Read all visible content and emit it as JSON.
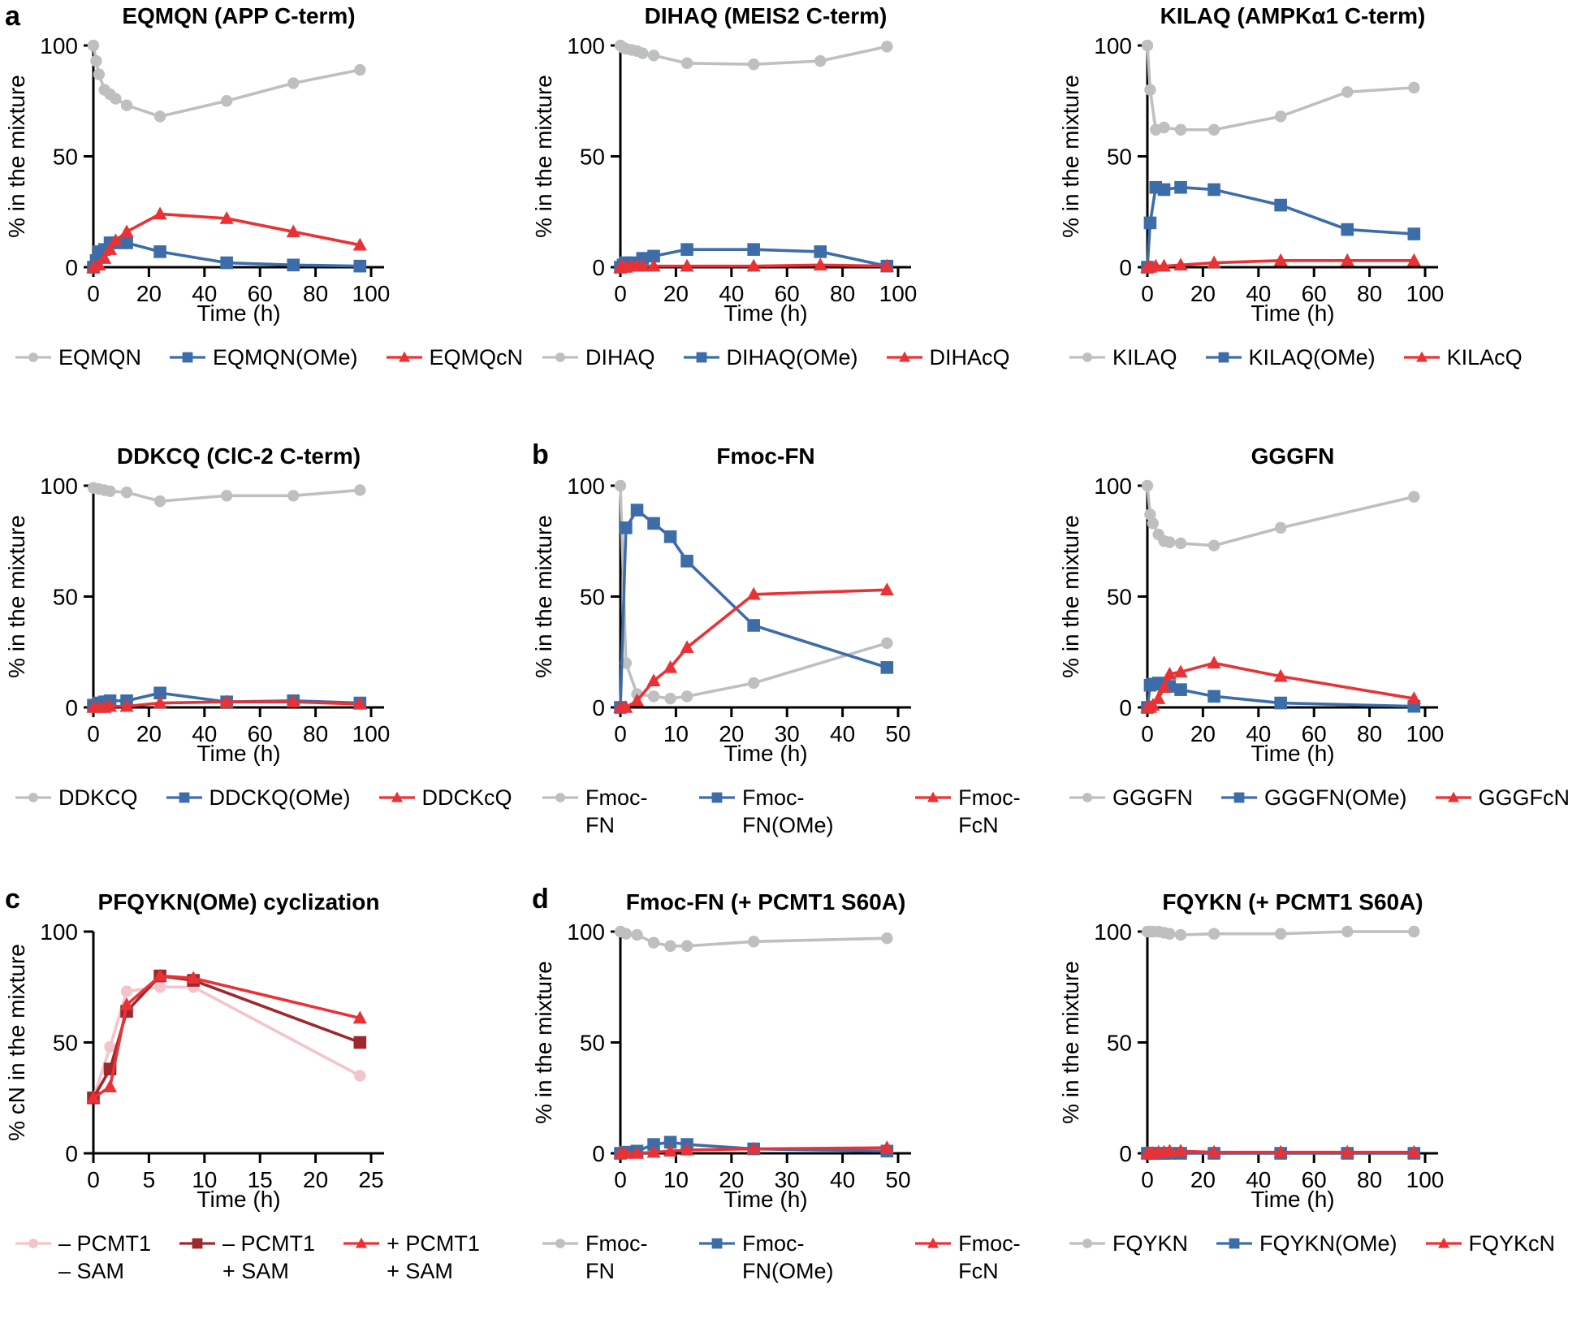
{
  "figure": {
    "background": "#ffffff",
    "axis_color": "#000000",
    "series_colors": {
      "gray": "#bdbfc1",
      "blue": "#3d6da8",
      "red": "#e93235",
      "pink": "#f3c4ca",
      "dark_red": "#9d282d"
    }
  },
  "chart_data": [
    {
      "panel_letter": "a",
      "type": "line",
      "title": "EQMQN (APP C-term)",
      "xlabel": "Time (h)",
      "ylabel": "% in the mixture",
      "xticks": [
        0,
        20,
        40,
        60,
        80,
        100
      ],
      "yticks": [
        0,
        50,
        100
      ],
      "xlim": [
        0,
        104
      ],
      "ylim": [
        0,
        100
      ],
      "grid": false,
      "legend_position": "bottom",
      "series": [
        {
          "name": "EQMQN",
          "legend_label": "EQMQN",
          "marker": "circle",
          "color": "#bdbfc1",
          "x": [
            0,
            1,
            2,
            4,
            6,
            8,
            12,
            24,
            48,
            72,
            96
          ],
          "y": [
            100,
            93,
            87,
            80,
            78,
            76,
            73,
            68,
            75,
            83,
            89
          ]
        },
        {
          "name": "EQMQN(OMe)",
          "legend_label": "EQMQN(OMe)",
          "marker": "square",
          "color": "#3d6da8",
          "x": [
            0,
            1,
            2,
            4,
            6,
            8,
            12,
            24,
            48,
            72,
            96
          ],
          "y": [
            0,
            3,
            7,
            8,
            11,
            11,
            11,
            7,
            2,
            1,
            0.5
          ]
        },
        {
          "name": "EQMQcN",
          "legend_label": "EQMQcN",
          "marker": "triangle",
          "color": "#e93235",
          "x": [
            0,
            2,
            4,
            6,
            8,
            12,
            24,
            48,
            72,
            96
          ],
          "y": [
            0,
            1,
            4,
            8,
            12,
            16,
            24,
            22,
            16,
            10
          ]
        }
      ]
    },
    {
      "panel_letter": "",
      "type": "line",
      "title": "DIHAQ (MEIS2 C-term)",
      "xlabel": "Time (h)",
      "ylabel": "% in the mixture",
      "xticks": [
        0,
        20,
        40,
        60,
        80,
        100
      ],
      "yticks": [
        0,
        50,
        100
      ],
      "xlim": [
        0,
        104
      ],
      "ylim": [
        0,
        100
      ],
      "grid": false,
      "legend_position": "bottom",
      "series": [
        {
          "name": "DIHAQ",
          "legend_label": "DIHAQ",
          "marker": "circle",
          "color": "#bdbfc1",
          "x": [
            0,
            1,
            2,
            4,
            6,
            8,
            12,
            24,
            48,
            72,
            96
          ],
          "y": [
            100,
            99,
            98.5,
            98,
            97.5,
            96.5,
            95.5,
            92,
            91.5,
            93,
            99.5
          ]
        },
        {
          "name": "DIHAQ(OMe)",
          "legend_label": "DIHAQ(OMe)",
          "marker": "square",
          "color": "#3d6da8",
          "x": [
            0,
            1,
            2,
            4,
            6,
            8,
            12,
            24,
            48,
            72,
            96
          ],
          "y": [
            0,
            1,
            2,
            2,
            1.5,
            4,
            5,
            8,
            8,
            7,
            0.5
          ]
        },
        {
          "name": "DIHAcQ",
          "legend_label": "DIHAcQ",
          "marker": "triangle",
          "color": "#e93235",
          "x": [
            0,
            1,
            2,
            4,
            6,
            8,
            12,
            24,
            48,
            72,
            96
          ],
          "y": [
            0,
            0,
            0,
            0.5,
            0.5,
            0.5,
            0.5,
            0.5,
            0.5,
            1,
            0.5
          ]
        }
      ]
    },
    {
      "panel_letter": "",
      "type": "line",
      "title": "KILAQ (AMPKα1 C-term)",
      "xlabel": "Time (h)",
      "ylabel": "% in the mixture",
      "xticks": [
        0,
        20,
        40,
        60,
        80,
        100
      ],
      "yticks": [
        0,
        50,
        100
      ],
      "xlim": [
        0,
        104
      ],
      "ylim": [
        0,
        100
      ],
      "grid": false,
      "legend_position": "bottom",
      "series": [
        {
          "name": "KILAQ",
          "legend_label": "KILAQ",
          "marker": "circle",
          "color": "#bdbfc1",
          "x": [
            0,
            1,
            3,
            6,
            12,
            24,
            48,
            72,
            96
          ],
          "y": [
            100,
            80,
            62,
            63,
            62,
            62,
            68,
            79,
            81
          ]
        },
        {
          "name": "KILAQ(OMe)",
          "legend_label": "KILAQ(OMe)",
          "marker": "square",
          "color": "#3d6da8",
          "x": [
            0,
            1,
            3,
            6,
            12,
            24,
            48,
            72,
            96
          ],
          "y": [
            0,
            20,
            36,
            35,
            36,
            35,
            28,
            17,
            15
          ]
        },
        {
          "name": "KILAcQ",
          "legend_label": "KILAcQ",
          "marker": "triangle",
          "color": "#e93235",
          "x": [
            0,
            1,
            3,
            6,
            12,
            24,
            48,
            72,
            96
          ],
          "y": [
            0,
            0,
            0.5,
            0.5,
            1,
            2,
            3,
            3,
            3
          ]
        }
      ]
    },
    {
      "panel_letter": "",
      "type": "line",
      "title": "DDKCQ (ClC-2 C-term)",
      "xlabel": "Time (h)",
      "ylabel": "% in the mixture",
      "xticks": [
        0,
        20,
        40,
        60,
        80,
        100
      ],
      "yticks": [
        0,
        50,
        100
      ],
      "xlim": [
        0,
        104
      ],
      "ylim": [
        0,
        100
      ],
      "grid": false,
      "legend_position": "bottom",
      "series": [
        {
          "name": "DDKCQ",
          "legend_label": "DDKCQ",
          "marker": "circle",
          "color": "#bdbfc1",
          "x": [
            0,
            2,
            4,
            6,
            12,
            24,
            48,
            72,
            96
          ],
          "y": [
            99,
            98.5,
            98,
            97.5,
            97,
            93,
            95.5,
            95.5,
            98
          ]
        },
        {
          "name": "DDCKQ(OMe)",
          "legend_label": "DDCKQ(OMe)",
          "marker": "square",
          "color": "#3d6da8",
          "x": [
            0,
            2,
            4,
            6,
            12,
            24,
            48,
            72,
            96
          ],
          "y": [
            1,
            2,
            2.5,
            3,
            3,
            6.5,
            2.5,
            3,
            2
          ]
        },
        {
          "name": "DDCKcQ",
          "legend_label": "DDCKcQ",
          "marker": "triangle",
          "color": "#e93235",
          "x": [
            0,
            2,
            4,
            6,
            12,
            24,
            48,
            72,
            96
          ],
          "y": [
            0,
            0,
            0,
            0.5,
            0.5,
            2,
            2.5,
            2.5,
            1.5
          ]
        }
      ]
    },
    {
      "panel_letter": "b",
      "type": "line",
      "title": "Fmoc-FN",
      "xlabel": "Time (h)",
      "ylabel": "% in the mixture",
      "xticks": [
        0,
        10,
        20,
        30,
        40,
        50
      ],
      "yticks": [
        0,
        50,
        100
      ],
      "xlim": [
        0,
        52
      ],
      "ylim": [
        0,
        100
      ],
      "grid": false,
      "legend_position": "bottom",
      "series": [
        {
          "name": "Fmoc-FN",
          "legend_label": "Fmoc-FN",
          "marker": "circle",
          "color": "#bdbfc1",
          "x": [
            0,
            1,
            3,
            6,
            9,
            12,
            24,
            48
          ],
          "y": [
            100,
            20,
            6,
            5,
            4,
            5,
            11,
            29
          ]
        },
        {
          "name": "Fmoc-FN(OMe)",
          "legend_label": "Fmoc-FN(OMe)",
          "marker": "square",
          "color": "#3d6da8",
          "x": [
            0,
            1,
            3,
            6,
            9,
            12,
            24,
            48
          ],
          "y": [
            0,
            81,
            89,
            83,
            77,
            66,
            37,
            18
          ]
        },
        {
          "name": "Fmoc-FcN",
          "legend_label": "Fmoc-FcN",
          "marker": "triangle",
          "color": "#e93235",
          "x": [
            0,
            1,
            3,
            6,
            9,
            12,
            24,
            48
          ],
          "y": [
            0,
            0,
            3,
            12,
            18,
            27,
            51,
            53
          ]
        }
      ]
    },
    {
      "panel_letter": "",
      "type": "line",
      "title": "GGGFN",
      "xlabel": "Time (h)",
      "ylabel": "% in the mixture",
      "xticks": [
        0,
        20,
        40,
        60,
        80,
        100
      ],
      "yticks": [
        0,
        50,
        100
      ],
      "xlim": [
        0,
        104
      ],
      "ylim": [
        0,
        100
      ],
      "grid": false,
      "legend_position": "bottom",
      "series": [
        {
          "name": "GGGFN",
          "legend_label": "GGGFN",
          "marker": "circle",
          "color": "#bdbfc1",
          "x": [
            0,
            1,
            2,
            4,
            6,
            8,
            12,
            24,
            48,
            96
          ],
          "y": [
            100,
            87,
            83,
            78,
            75,
            74.5,
            74,
            73,
            81,
            95
          ]
        },
        {
          "name": "GGGFN(OMe)",
          "legend_label": "GGGFN(OMe)",
          "marker": "square",
          "color": "#3d6da8",
          "x": [
            0,
            1,
            2,
            4,
            6,
            8,
            12,
            24,
            48,
            96
          ],
          "y": [
            0,
            10,
            10.5,
            11,
            10.5,
            9.5,
            8,
            5,
            2,
            0.5
          ]
        },
        {
          "name": "GGGFcN",
          "legend_label": "GGGFcN",
          "marker": "triangle",
          "color": "#e93235",
          "x": [
            0,
            1,
            2,
            4,
            6,
            8,
            12,
            24,
            48,
            96
          ],
          "y": [
            0,
            0,
            1,
            4,
            9,
            15,
            16,
            20,
            14,
            4
          ]
        }
      ]
    },
    {
      "panel_letter": "c",
      "type": "line",
      "title": "PFQYKN(OMe) cyclization",
      "xlabel": "Time (h)",
      "ylabel": "% cN in the mixture",
      "xticks": [
        0,
        5,
        10,
        15,
        20,
        25
      ],
      "yticks": [
        0,
        50,
        100
      ],
      "xlim": [
        0,
        26
      ],
      "ylim": [
        0,
        100
      ],
      "grid": false,
      "legend_position": "bottom",
      "series": [
        {
          "name": "- PCMT1 - SAM",
          "legend_label": "– PCMT1\n– SAM",
          "marker": "circle",
          "color": "#f3c4ca",
          "x": [
            0,
            1.5,
            3,
            6,
            9,
            24
          ],
          "y": [
            25,
            48,
            73,
            75,
            75,
            35
          ]
        },
        {
          "name": "- PCMT1 + SAM",
          "legend_label": "– PCMT1\n+ SAM",
          "marker": "square",
          "color": "#9d282d",
          "x": [
            0,
            1.5,
            3,
            6,
            9,
            24
          ],
          "y": [
            25,
            38,
            64,
            80,
            78,
            50
          ]
        },
        {
          "name": "+ PCMT1 + SAM",
          "legend_label": "+ PCMT1\n+ SAM",
          "marker": "triangle",
          "color": "#e93235",
          "x": [
            0,
            1.5,
            3,
            6,
            9,
            24
          ],
          "y": [
            25,
            30,
            67,
            80,
            79,
            61
          ]
        }
      ]
    },
    {
      "panel_letter": "d",
      "type": "line",
      "title": "Fmoc-FN (+ PCMT1 S60A)",
      "xlabel": "Time (h)",
      "ylabel": "% in the mixture",
      "xticks": [
        0,
        10,
        20,
        30,
        40,
        50
      ],
      "yticks": [
        0,
        50,
        100
      ],
      "xlim": [
        0,
        52
      ],
      "ylim": [
        0,
        100
      ],
      "grid": false,
      "legend_position": "bottom",
      "series": [
        {
          "name": "Fmoc-FN",
          "legend_label": "Fmoc-FN",
          "marker": "circle",
          "color": "#bdbfc1",
          "x": [
            0,
            1,
            3,
            6,
            9,
            12,
            24,
            48
          ],
          "y": [
            100,
            99,
            98.5,
            95,
            93.5,
            93.5,
            95.5,
            97
          ]
        },
        {
          "name": "Fmoc-FN(OMe)",
          "legend_label": "Fmoc-FN(OMe)",
          "marker": "square",
          "color": "#3d6da8",
          "x": [
            0,
            1,
            3,
            6,
            9,
            12,
            24,
            48
          ],
          "y": [
            0,
            0.5,
            1,
            4,
            5,
            4,
            2,
            1
          ]
        },
        {
          "name": "Fmoc-FcN",
          "legend_label": "Fmoc-FcN",
          "marker": "triangle",
          "color": "#e93235",
          "x": [
            0,
            1,
            3,
            6,
            9,
            12,
            24,
            48
          ],
          "y": [
            0,
            0,
            0,
            0.5,
            1,
            1.5,
            2,
            2.5
          ]
        }
      ]
    },
    {
      "panel_letter": "",
      "type": "line",
      "title": "FQYKN (+ PCMT1 S60A)",
      "xlabel": "Time (h)",
      "ylabel": "% in the mixture",
      "xticks": [
        0,
        20,
        40,
        60,
        80,
        100
      ],
      "yticks": [
        0,
        50,
        100
      ],
      "xlim": [
        0,
        104
      ],
      "ylim": [
        0,
        100
      ],
      "grid": false,
      "legend_position": "bottom",
      "series": [
        {
          "name": "FQYKN",
          "legend_label": "FQYKN",
          "marker": "circle",
          "color": "#bdbfc1",
          "x": [
            0,
            1,
            2,
            4,
            6,
            8,
            12,
            24,
            48,
            72,
            96
          ],
          "y": [
            100,
            100,
            100,
            100,
            99.5,
            99,
            98.5,
            99,
            99,
            100,
            100
          ]
        },
        {
          "name": "FQYKN(OMe)",
          "legend_label": "FQYKN(OMe)",
          "marker": "square",
          "color": "#3d6da8",
          "x": [
            0,
            1,
            2,
            4,
            6,
            8,
            12,
            24,
            48,
            72,
            96
          ],
          "y": [
            0,
            0,
            0,
            0,
            0,
            0,
            0,
            0,
            0,
            0,
            0
          ]
        },
        {
          "name": "FQYKcN",
          "legend_label": "FQYKcN",
          "marker": "triangle",
          "color": "#e93235",
          "x": [
            0,
            1,
            2,
            4,
            6,
            8,
            12,
            24,
            48,
            72,
            96
          ],
          "y": [
            0,
            0,
            0,
            0.5,
            0.5,
            1,
            1,
            0.5,
            0.5,
            0.5,
            0.5
          ]
        }
      ]
    }
  ]
}
